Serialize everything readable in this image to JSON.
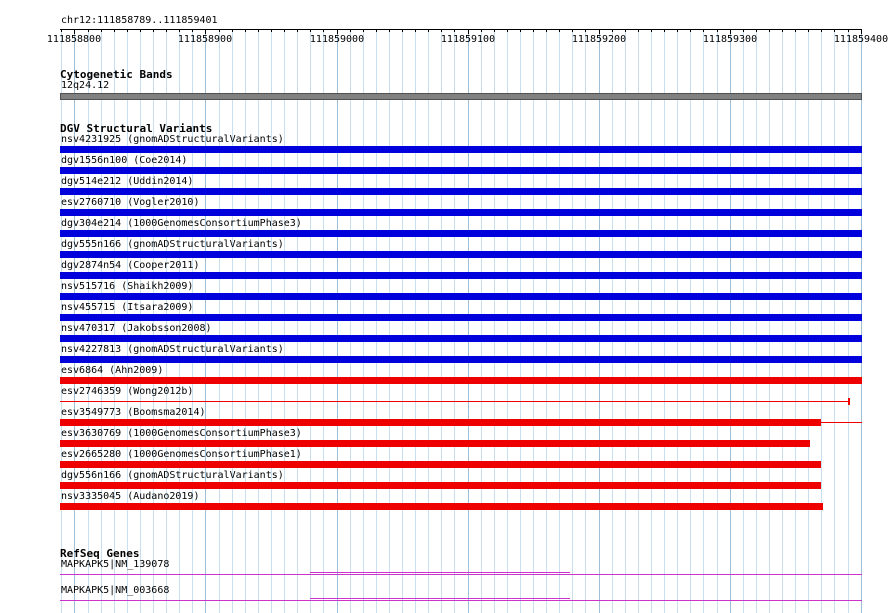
{
  "ruler": {
    "location": "chr12:111858789..111859401",
    "ticks": [
      "111858800",
      "111858900",
      "111859000",
      "111859100",
      "111859200",
      "111859300",
      "111859400"
    ]
  },
  "tracks": {
    "cytoband": {
      "title": "Cytogenetic Bands",
      "band": "12q24.12",
      "color": "#808080"
    },
    "dgv": {
      "title": "DGV Structural Variants",
      "colors": {
        "gain": "#0000dd",
        "loss": "#ee0000"
      },
      "features": [
        {
          "label": "nsv4231925 (gnomADStructuralVariants)",
          "type": "gain",
          "start": 111858789,
          "end": 111859401
        },
        {
          "label": "dgv1556n100 (Coe2014)",
          "type": "gain",
          "start": 111858789,
          "end": 111859401
        },
        {
          "label": "dgv514e212 (Uddin2014)",
          "type": "gain",
          "start": 111858789,
          "end": 111859401
        },
        {
          "label": "esv2760710 (Vogler2010)",
          "type": "gain",
          "start": 111858789,
          "end": 111859401
        },
        {
          "label": "dgv304e214 (1000GenomesConsortiumPhase3)",
          "type": "gain",
          "start": 111858789,
          "end": 111859401
        },
        {
          "label": "dgv555n166 (gnomADStructuralVariants)",
          "type": "gain",
          "start": 111858789,
          "end": 111859401
        },
        {
          "label": "dgv2874n54 (Cooper2011)",
          "type": "gain",
          "start": 111858789,
          "end": 111859401
        },
        {
          "label": "nsv515716 (Shaikh2009)",
          "type": "gain",
          "start": 111858789,
          "end": 111859401
        },
        {
          "label": "nsv455715 (Itsara2009)",
          "type": "gain",
          "start": 111858789,
          "end": 111859401
        },
        {
          "label": "nsv470317 (Jakobsson2008)",
          "type": "gain",
          "start": 111858789,
          "end": 111859401
        },
        {
          "label": "nsv4227813 (gnomADStructuralVariants)",
          "type": "gain",
          "start": 111858789,
          "end": 111859401
        },
        {
          "label": "esv6864 (Ahn2009)",
          "type": "loss",
          "start": 111858789,
          "end": 111859401
        },
        {
          "label": "esv2746359 (Wong2012b)",
          "type": "loss",
          "style": "line",
          "start": 111858789,
          "end": 111859390
        },
        {
          "label": "esv3549773 (Boomsma2014)",
          "type": "loss",
          "start": 111858789,
          "end": 111859370,
          "tail_end": 111859401
        },
        {
          "label": "esv3630769 (1000GenomesConsortiumPhase3)",
          "type": "loss",
          "start": 111858789,
          "end": 111859361
        },
        {
          "label": "esv2665280 (1000GenomesConsortiumPhase1)",
          "type": "loss",
          "start": 111858789,
          "end": 111859370
        },
        {
          "label": "dgv556n166 (gnomADStructuralVariants)",
          "type": "loss",
          "start": 111858789,
          "end": 111859370
        },
        {
          "label": "nsv3335045 (Audano2019)",
          "type": "loss",
          "start": 111858789,
          "end": 111859371
        }
      ]
    },
    "refseq": {
      "title": "RefSeq Genes",
      "color": "#cc33cc",
      "genes": [
        {
          "label": "MAPKAPK5|NM_139078"
        },
        {
          "label": "MAPKAPK5|NM_003668"
        }
      ]
    }
  }
}
